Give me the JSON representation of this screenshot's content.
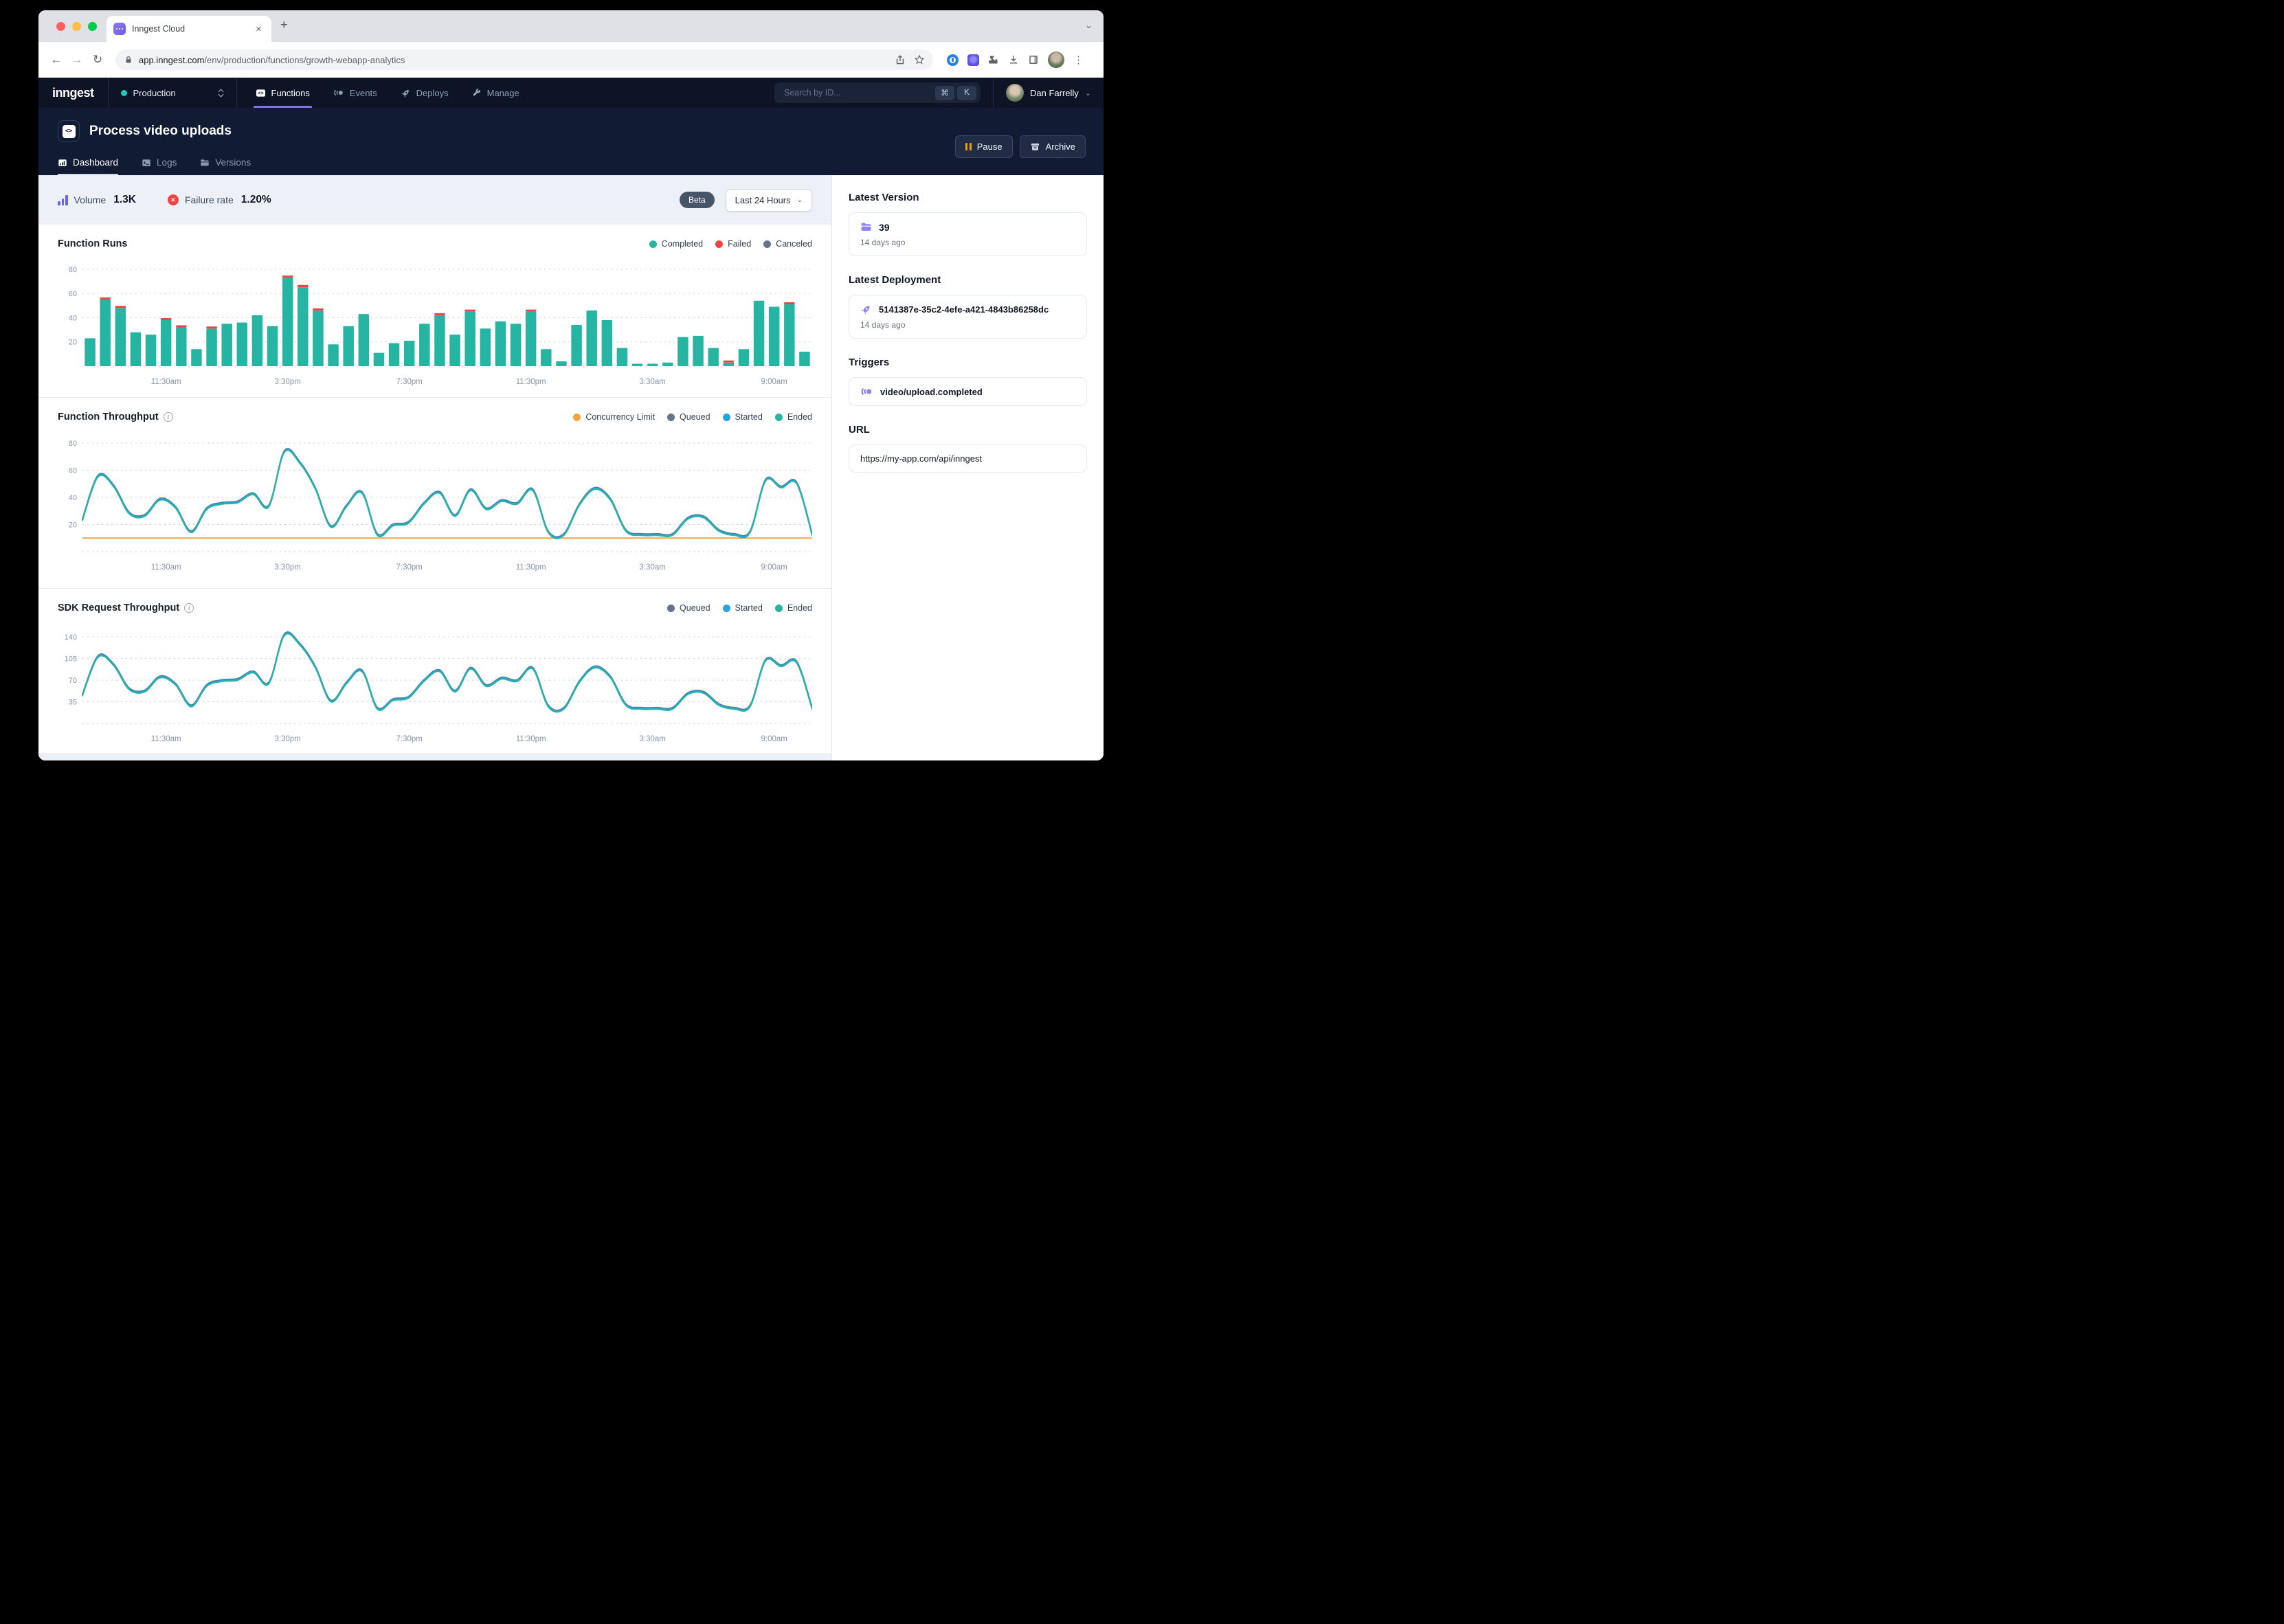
{
  "browser": {
    "tab_title": "Inngest Cloud",
    "url_domain": "app.inngest.com",
    "url_path": "/env/production/functions/growth-webapp-analytics"
  },
  "icons": {
    "back": "←",
    "forward": "→",
    "reload": "↻",
    "kebab": "⋮",
    "close": "✕",
    "plus": "+",
    "chevron": "⌄",
    "cmd_key": "⌘",
    "info": "i"
  },
  "nav": {
    "logo": "inngest",
    "environment": "Production",
    "items": [
      {
        "label": "Functions",
        "active": true
      },
      {
        "label": "Events",
        "active": false
      },
      {
        "label": "Deploys",
        "active": false
      },
      {
        "label": "Manage",
        "active": false
      }
    ],
    "search_placeholder": "Search by ID...",
    "search_keys": [
      "⌘",
      "K"
    ],
    "user": "Dan Farrelly"
  },
  "header": {
    "title": "Process video uploads",
    "tabs": [
      {
        "label": "Dashboard",
        "active": true
      },
      {
        "label": "Logs",
        "active": false
      },
      {
        "label": "Versions",
        "active": false
      }
    ],
    "pause_label": "Pause",
    "archive_label": "Archive"
  },
  "stats": {
    "volume_label": "Volume",
    "volume_value": "1.3K",
    "failure_label": "Failure rate",
    "failure_value": "1.20%",
    "beta_badge": "Beta",
    "time_range": "Last 24 Hours"
  },
  "colors": {
    "completed": "#26b5a3",
    "failed": "#ef4444",
    "canceled": "#64748b",
    "queued": "#64748b",
    "started": "#23a4e4",
    "ended": "#26b5a3",
    "concurrency": "#f2a53c",
    "accent": "#7c6ff0",
    "nav_bg": "#0d1425",
    "header_bg": "#111b33",
    "page_bg": "#edf1f7",
    "beta_badge": "#475569",
    "pause_icon": "#f59e0b",
    "env_dot": "#23c7c0"
  },
  "chart_data": [
    {
      "type": "bar",
      "title": "Function Runs",
      "legend": [
        {
          "label": "Completed",
          "color": "#26b5a3"
        },
        {
          "label": "Failed",
          "color": "#ef4444"
        },
        {
          "label": "Canceled",
          "color": "#64748b"
        }
      ],
      "yticks": [
        20,
        40,
        60,
        80
      ],
      "ylim": [
        0,
        85
      ],
      "x_labels": [
        {
          "i": 5,
          "label": "11:30am"
        },
        {
          "i": 13,
          "label": "3:30pm"
        },
        {
          "i": 21,
          "label": "7:30pm"
        },
        {
          "i": 29,
          "label": "11:30pm"
        },
        {
          "i": 37,
          "label": "3:30am"
        },
        {
          "i": 45,
          "label": "9:00am"
        }
      ],
      "series": [
        {
          "name": "Completed",
          "color": "#26b5a3",
          "values": [
            23,
            55,
            48,
            28,
            26,
            38,
            32,
            14,
            31,
            35,
            36,
            42,
            33,
            73,
            65,
            46,
            18,
            33,
            43,
            11,
            19,
            21,
            35,
            42,
            26,
            45,
            31,
            37,
            35,
            45,
            14,
            4,
            34,
            46,
            38,
            15,
            2,
            2,
            3,
            24,
            25,
            15,
            3,
            14,
            54,
            49,
            51,
            12
          ]
        },
        {
          "name": "Failed",
          "color": "#ef4444",
          "values": [
            0,
            1.5,
            1.5,
            0,
            0,
            1.5,
            1.5,
            0,
            1.5,
            0,
            0,
            0,
            0,
            1.5,
            2,
            1.5,
            0,
            0,
            0,
            0,
            0,
            0,
            0,
            1.5,
            0,
            1.5,
            0,
            0,
            0,
            1.5,
            0,
            0,
            0,
            0,
            0,
            0,
            0,
            0,
            0,
            0,
            0,
            0,
            1.5,
            0,
            0,
            0,
            1.5,
            0
          ]
        }
      ]
    },
    {
      "type": "line",
      "title": "Function Throughput",
      "legend": [
        {
          "label": "Concurrency Limit",
          "color": "#f2a53c"
        },
        {
          "label": "Queued",
          "color": "#64748b"
        },
        {
          "label": "Started",
          "color": "#23a4e4"
        },
        {
          "label": "Ended",
          "color": "#26b5a3"
        }
      ],
      "yticks": [
        20,
        40,
        60,
        80
      ],
      "ylim": [
        0,
        85
      ],
      "concurrency_limit": 10,
      "x_labels": [
        {
          "i": 5,
          "label": "11:30am"
        },
        {
          "i": 13,
          "label": "3:30pm"
        },
        {
          "i": 21,
          "label": "7:30pm"
        },
        {
          "i": 29,
          "label": "11:30pm"
        },
        {
          "i": 37,
          "label": "3:30am"
        },
        {
          "i": 45,
          "label": "9:00am"
        }
      ],
      "series": [
        {
          "name": "Queued",
          "color": "#64748b",
          "values": [
            23,
            55,
            48,
            28,
            26,
            38,
            32,
            14,
            31,
            35,
            36,
            42,
            33,
            73,
            65,
            46,
            18,
            33,
            43,
            12,
            19,
            21,
            35,
            43,
            26,
            45,
            31,
            37,
            35,
            45,
            14,
            12,
            34,
            46,
            38,
            15,
            12,
            12,
            12,
            24,
            25,
            15,
            12,
            14,
            52,
            47,
            50,
            12
          ]
        },
        {
          "name": "Started",
          "color": "#23a4e4",
          "values": [
            23,
            55,
            48,
            28,
            26,
            38,
            32,
            14,
            31,
            35,
            36,
            42,
            33,
            73,
            65,
            46,
            18,
            33,
            43,
            12,
            19,
            21,
            35,
            43,
            26,
            45,
            31,
            37,
            35,
            45,
            14,
            12,
            34,
            46,
            38,
            15,
            12,
            12,
            12,
            24,
            25,
            15,
            12,
            14,
            52,
            47,
            50,
            12
          ]
        },
        {
          "name": "Ended",
          "color": "#26b5a3",
          "values": [
            23,
            55,
            48,
            28,
            26,
            38,
            32,
            14,
            31,
            35,
            36,
            42,
            33,
            73,
            65,
            46,
            18,
            33,
            43,
            12,
            19,
            21,
            35,
            43,
            26,
            45,
            31,
            37,
            35,
            45,
            14,
            12,
            34,
            46,
            38,
            15,
            12,
            12,
            12,
            24,
            25,
            15,
            12,
            14,
            52,
            47,
            50,
            12
          ]
        }
      ]
    },
    {
      "type": "line",
      "title": "SDK Request Throughput",
      "legend": [
        {
          "label": "Queued",
          "color": "#64748b"
        },
        {
          "label": "Started",
          "color": "#23a4e4"
        },
        {
          "label": "Ended",
          "color": "#26b5a3"
        }
      ],
      "yticks": [
        35,
        70,
        105,
        140
      ],
      "ylim": [
        0,
        158
      ],
      "x_labels": [
        {
          "i": 5,
          "label": "11:30am"
        },
        {
          "i": 13,
          "label": "3:30pm"
        },
        {
          "i": 21,
          "label": "7:30pm"
        },
        {
          "i": 29,
          "label": "11:30pm"
        },
        {
          "i": 37,
          "label": "3:30am"
        },
        {
          "i": 45,
          "label": "9:00am"
        }
      ],
      "series": [
        {
          "name": "Queued",
          "color": "#64748b",
          "values": [
            45,
            107,
            94,
            55,
            51,
            74,
            62,
            27,
            60,
            68,
            70,
            82,
            64,
            142,
            127,
            90,
            35,
            64,
            84,
            23,
            37,
            41,
            68,
            84,
            51,
            88,
            60,
            72,
            68,
            88,
            27,
            23,
            66,
            90,
            74,
            29,
            23,
            23,
            23,
            47,
            49,
            29,
            23,
            27,
            101,
            92,
            98,
            23
          ]
        },
        {
          "name": "Started",
          "color": "#23a4e4",
          "values": [
            45,
            107,
            94,
            55,
            51,
            74,
            62,
            27,
            60,
            68,
            70,
            82,
            64,
            142,
            127,
            90,
            35,
            64,
            84,
            23,
            37,
            41,
            68,
            84,
            51,
            88,
            60,
            72,
            68,
            88,
            27,
            23,
            66,
            90,
            74,
            29,
            23,
            23,
            23,
            47,
            49,
            29,
            23,
            27,
            101,
            92,
            98,
            23
          ]
        },
        {
          "name": "Ended",
          "color": "#26b5a3",
          "values": [
            45,
            107,
            94,
            55,
            51,
            74,
            62,
            27,
            60,
            68,
            70,
            82,
            64,
            142,
            127,
            90,
            35,
            64,
            84,
            23,
            37,
            41,
            68,
            84,
            51,
            88,
            60,
            72,
            68,
            88,
            27,
            23,
            66,
            90,
            74,
            29,
            23,
            23,
            23,
            47,
            49,
            29,
            23,
            27,
            101,
            92,
            98,
            23
          ]
        }
      ]
    }
  ],
  "sidebar": {
    "latest_version": {
      "heading": "Latest Version",
      "value": "39",
      "ago": "14 days ago"
    },
    "latest_deployment": {
      "heading": "Latest Deployment",
      "value": "5141387e-35c2-4efe-a421-4843b86258dc",
      "ago": "14 days ago"
    },
    "triggers": {
      "heading": "Triggers",
      "value": "video/upload.completed"
    },
    "url": {
      "heading": "URL",
      "value": "https://my-app.com/api/inngest"
    }
  }
}
